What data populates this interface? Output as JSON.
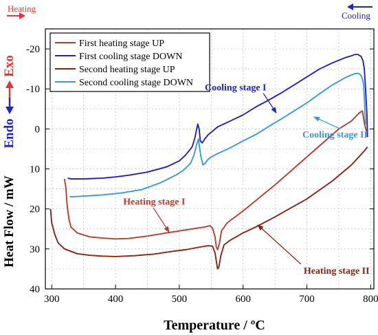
{
  "chart_data": {
    "type": "line",
    "title": "",
    "xlabel": "Temperature / ºC",
    "ylabel": "Heat Flow / mW",
    "ylabel_exo": "Exo",
    "ylabel_endo": "Endo",
    "xlim": [
      290,
      805
    ],
    "ylim": [
      40,
      -25
    ],
    "y_reversed": true,
    "xticks": [
      300,
      400,
      500,
      600,
      700,
      800
    ],
    "yticks": [
      -20,
      -10,
      0,
      10,
      20,
      30,
      40
    ],
    "xtick_labels": [
      "300",
      "400",
      "500",
      "600",
      "700",
      "800"
    ],
    "ytick_labels": [
      "-20",
      "-10",
      "0",
      "10",
      "20",
      "30",
      "40"
    ],
    "grid": true,
    "legend_position": "top-left",
    "colors": {
      "heating_arrow": "#e8342c",
      "cooling_arrow": "#1e22d8",
      "exo": "#e8342c",
      "endo": "#1e22d8"
    },
    "corner_labels": {
      "heating": "Heating",
      "cooling": "Cooling"
    },
    "series": [
      {
        "name": "First heating stage UP",
        "color": "#c0392b",
        "x": [
          320,
          322,
          324,
          327,
          330,
          340,
          360,
          380,
          400,
          420,
          450,
          480,
          500,
          520,
          540,
          548,
          552,
          556,
          558,
          560,
          563,
          566,
          575,
          600,
          650,
          700,
          750,
          770,
          782,
          787,
          790,
          793
        ],
        "y": [
          12.5,
          14.5,
          19,
          22.5,
          24.5,
          26,
          27,
          27.3,
          27.5,
          27.4,
          26.8,
          26,
          25.5,
          25,
          24.5,
          24.2,
          24.8,
          27,
          29.5,
          30.2,
          28.5,
          25.5,
          23.5,
          20.5,
          14,
          7,
          0,
          -2,
          -4,
          -4.5,
          -1.5,
          0.5
        ]
      },
      {
        "name": "First cooling stage DOWN",
        "color": "#1f1fd2",
        "x": [
          795,
          794,
          792,
          790,
          788,
          785,
          780,
          775,
          770,
          760,
          740,
          720,
          700,
          680,
          660,
          640,
          620,
          600,
          580,
          560,
          545,
          540,
          536,
          533,
          531,
          529,
          527,
          524,
          520,
          510,
          500,
          480,
          450,
          420,
          400,
          380,
          350,
          330,
          325
        ],
        "y": [
          2,
          -4,
          -10,
          -15,
          -17,
          -18.1,
          -18.6,
          -18.6,
          -18.3,
          -17.8,
          -16.5,
          -15,
          -13,
          -11,
          -9,
          -7.2,
          -5.5,
          -3.5,
          -2,
          -0.5,
          1.5,
          2.5,
          3.5,
          3,
          0,
          -1.2,
          0.2,
          2.5,
          4.5,
          6.5,
          8,
          9.5,
          10.8,
          11.6,
          12,
          12.3,
          12.5,
          12.5,
          12.3
        ]
      },
      {
        "name": "Second heating stage UP",
        "color": "#8b2212",
        "x": [
          298,
          300,
          305,
          310,
          320,
          340,
          360,
          380,
          400,
          430,
          460,
          490,
          510,
          530,
          545,
          552,
          556,
          558,
          560,
          562,
          565,
          570,
          580,
          600,
          620,
          650,
          700,
          740,
          770,
          790,
          795
        ],
        "y": [
          20,
          23.5,
          26.5,
          28.5,
          30,
          31.2,
          31.6,
          31.8,
          31.9,
          31.7,
          31.3,
          30.6,
          30.2,
          29.6,
          29.2,
          29.3,
          31,
          33,
          35,
          34.5,
          31.8,
          29,
          27.8,
          26,
          24.5,
          22,
          17.5,
          13,
          9,
          5.5,
          4.5
        ]
      },
      {
        "name": "Second cooling stage DOWN",
        "color": "#3399ee",
        "x": [
          792,
          791,
          790,
          789,
          787,
          785,
          783,
          780,
          775,
          770,
          760,
          740,
          720,
          700,
          680,
          660,
          640,
          620,
          600,
          580,
          560,
          550,
          545,
          541,
          537,
          534,
          532,
          530,
          527,
          523,
          518,
          512,
          505,
          495,
          470,
          440,
          410,
          380,
          350,
          328
        ],
        "y": [
          -1,
          -4,
          -8,
          -11,
          -12.5,
          -13.3,
          -13.7,
          -13.9,
          -13.8,
          -13.5,
          -12.8,
          -11,
          -8.8,
          -6.5,
          -4.5,
          -2.5,
          -0.6,
          1.4,
          3,
          4.7,
          6.2,
          7,
          7.6,
          8.5,
          9,
          7,
          5,
          2.5,
          4,
          6.5,
          8.5,
          9.5,
          10.5,
          11.5,
          13.5,
          15.2,
          16,
          16.5,
          16.8,
          17
        ]
      }
    ],
    "annotations": [
      {
        "text": "Cooling stage I",
        "color": "#1f1fd2",
        "x": 540,
        "y": -9.6,
        "arrow_to": [
          652,
          -4
        ]
      },
      {
        "text": "Cooling stage II",
        "color": "#3399ee",
        "x": 693,
        "y": 2.2,
        "arrow_to": [
          711,
          -3
        ]
      },
      {
        "text": "Heating stage I",
        "color": "#c0392b",
        "x": 412,
        "y": 18.9,
        "arrow_to": [
          484,
          25.8
        ]
      },
      {
        "text": "Heating stage II",
        "color": "#8b2212",
        "x": 695,
        "y": 36.2,
        "arrow_to": [
          623,
          24
        ]
      }
    ]
  }
}
